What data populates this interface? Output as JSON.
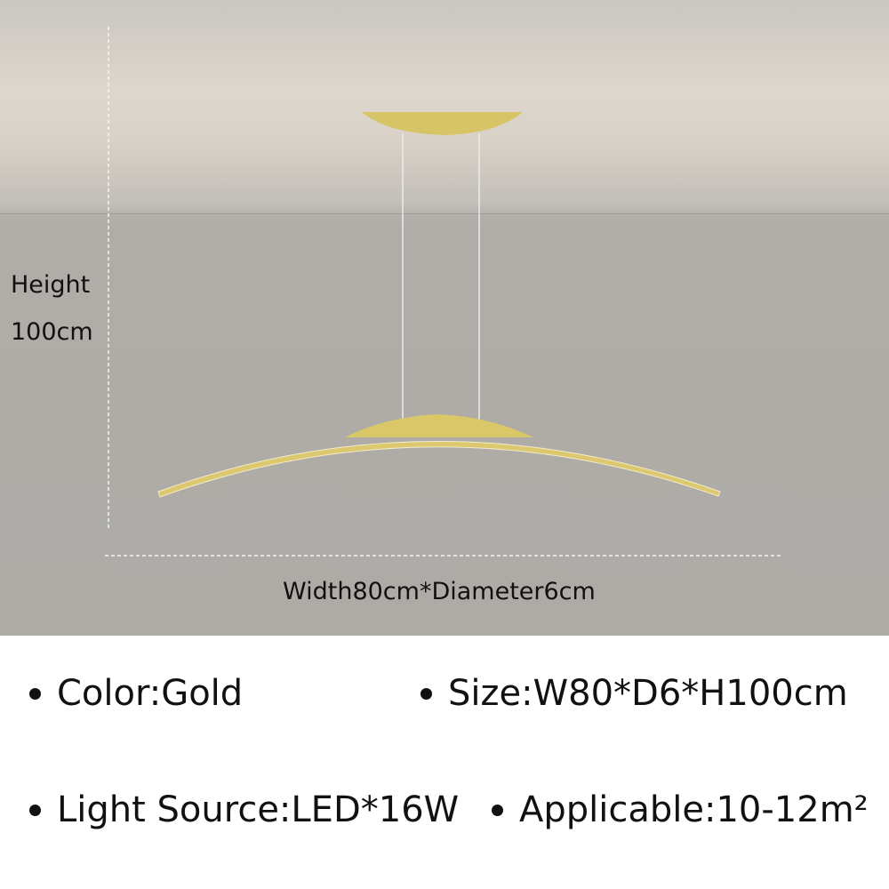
{
  "dimensions": {
    "height_label": "Height",
    "height_value": "100cm",
    "width_label": "Width80cm*Diameter6cm"
  },
  "product": {
    "color": "#dcc86e"
  },
  "specs": [
    {
      "text": "Color:Gold"
    },
    {
      "text": "Size:W80*D6*H100cm"
    },
    {
      "text": "Light Source:LED*16W"
    },
    {
      "text": "Applicable:10-12m²"
    }
  ]
}
